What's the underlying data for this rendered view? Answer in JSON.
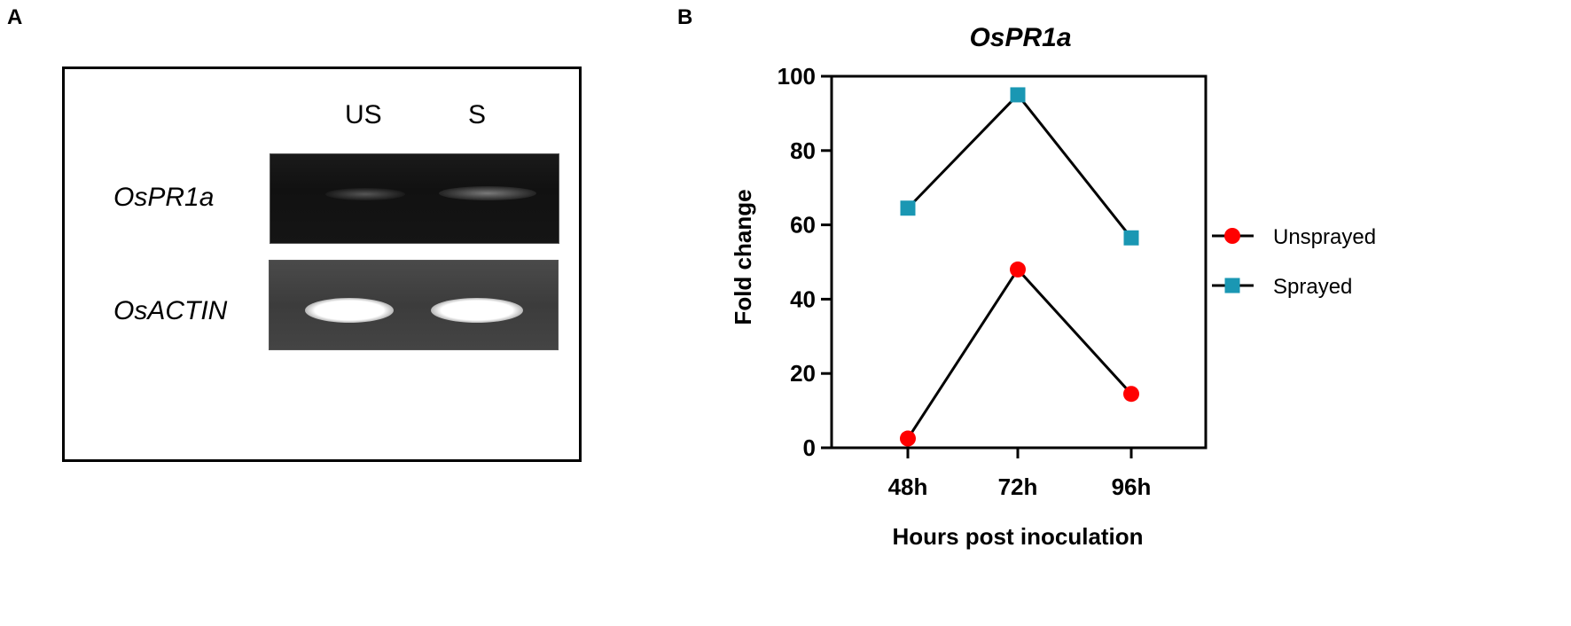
{
  "panel_a": {
    "letter": "A",
    "lanes": [
      "US",
      "S"
    ],
    "rows": [
      "OsPR1a",
      "OsACTIN"
    ]
  },
  "panel_b": {
    "letter": "B"
  },
  "chart_data": {
    "type": "line",
    "title": "OsPR1a",
    "xlabel": "Hours post inoculation",
    "ylabel": "Fold change",
    "categories": [
      "48h",
      "72h",
      "96h"
    ],
    "ylim": [
      0,
      100
    ],
    "yticks": [
      0,
      20,
      40,
      60,
      80,
      100
    ],
    "grid": false,
    "legend_position": "right",
    "series": [
      {
        "name": "Unsprayed",
        "values": [
          2.5,
          48,
          14.5
        ],
        "color": "#ff0000",
        "marker": "circle"
      },
      {
        "name": "Sprayed",
        "values": [
          64.5,
          95,
          56.5
        ],
        "color": "#1a97b3",
        "marker": "square"
      }
    ]
  }
}
